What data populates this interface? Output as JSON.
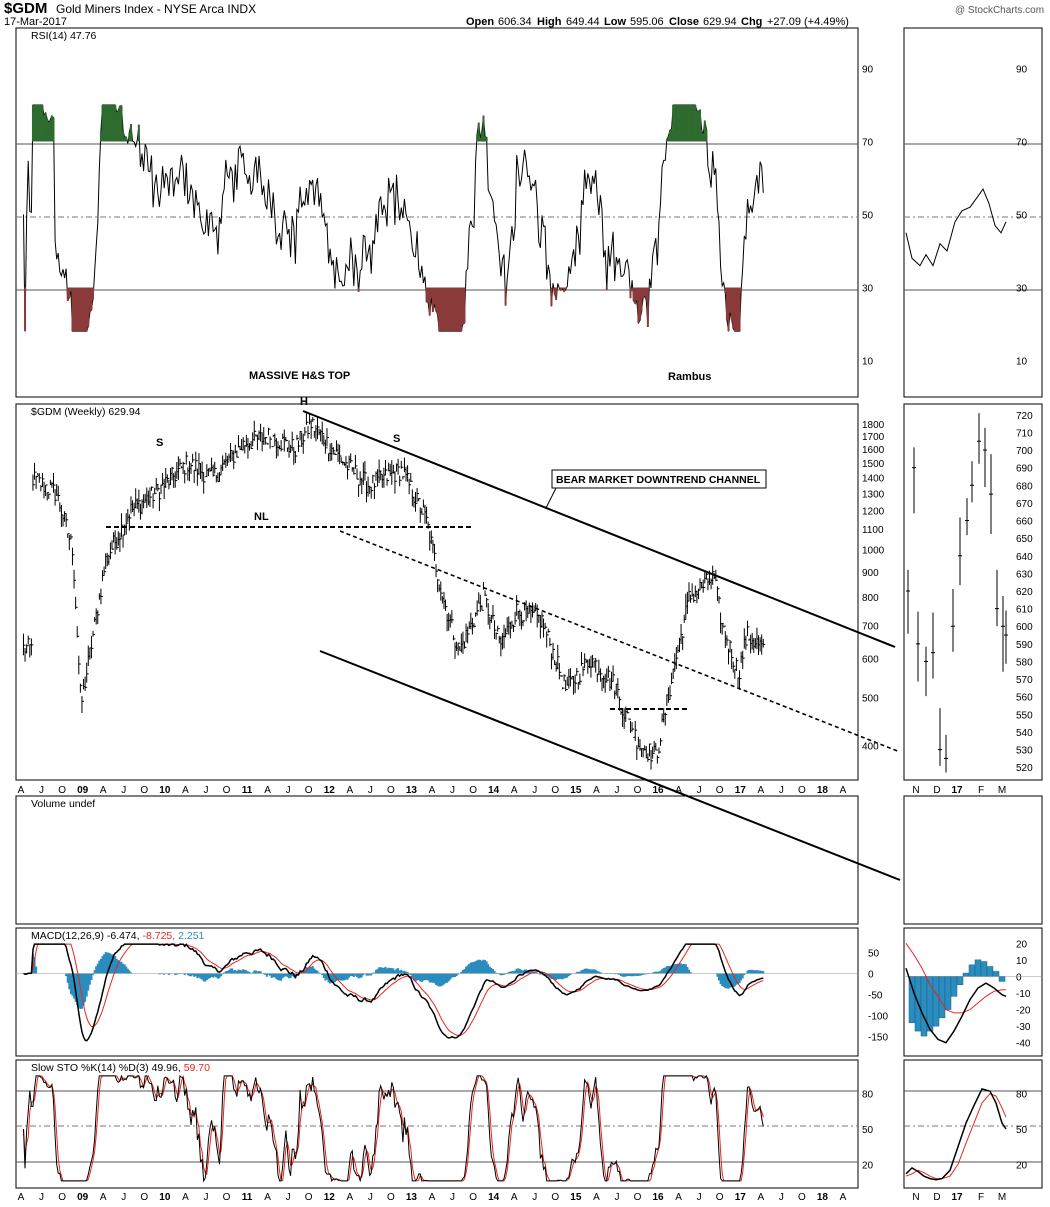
{
  "header": {
    "symbol": "$GDM",
    "name": "Gold Miners Index - NYSE Arca INDX",
    "date": "17-Mar-2017",
    "watermark": "@ StockCharts.com",
    "ohlc": {
      "open_label": "Open",
      "open": "606.34",
      "high_label": "High",
      "high": "649.44",
      "low_label": "Low",
      "low": "595.06",
      "close_label": "Close",
      "close": "629.94",
      "chg_label": "Chg",
      "chg": "+27.09 (+4.49%)"
    }
  },
  "panels": {
    "rsi_label": "RSI(14) 47.76",
    "price_label": "$GDM (Weekly) 629.94",
    "volume_label": "Volume undef",
    "macd_label_a": "MACD(12,26,9) -6.474,",
    "macd_label_b": "-8.725,",
    "macd_label_c": "2.251",
    "sto_label_a": "Slow STO %K(14) %D(3) 49.96,",
    "sto_label_b": "59.70"
  },
  "annotations": {
    "massive": "MASSIVE H&S TOP",
    "rambus": "Rambus",
    "h": "H",
    "s1": "S",
    "s2": "S",
    "nl": "NL",
    "bear": "BEAR MARKET  DOWNTREND CHANNEL"
  },
  "colors": {
    "up": "#2e6b2e",
    "down": "#8b3a3a",
    "signal": "#e8261c",
    "hist": "#2b8cbe",
    "dotted": "#666666"
  },
  "chart_data": {
    "type": "line",
    "title": "$GDM Gold Miners Index - NYSE Arca INDX (Weekly)",
    "x_axis_ticks_main": [
      "A",
      "J",
      "O",
      "09",
      "A",
      "J",
      "O",
      "10",
      "A",
      "J",
      "O",
      "11",
      "A",
      "J",
      "O",
      "12",
      "A",
      "J",
      "O",
      "13",
      "A",
      "J",
      "O",
      "14",
      "A",
      "J",
      "O",
      "15",
      "A",
      "J",
      "O",
      "16",
      "A",
      "J",
      "O",
      "17",
      "A",
      "J",
      "O",
      "18",
      "A"
    ],
    "x_axis_ticks_zoom": [
      "N",
      "D",
      "17",
      "F",
      "M"
    ],
    "rsi": {
      "ticks": [
        90,
        70,
        50,
        30,
        10
      ],
      "ylim": [
        0,
        100
      ],
      "last": 47.76
    },
    "price": {
      "scale": "log",
      "ticks": [
        1800,
        1700,
        1600,
        1500,
        1400,
        1300,
        1200,
        1100,
        1000,
        900,
        800,
        700,
        600,
        500,
        400
      ],
      "ylim": [
        340,
        1850
      ],
      "x": [
        2008.3,
        2008.6,
        2008.8,
        2008.9,
        2009.2,
        2009.5,
        2009.8,
        2010.2,
        2010.5,
        2010.9,
        2011.2,
        2011.5,
        2011.7,
        2012.1,
        2012.4,
        2012.8,
        2013.1,
        2013.3,
        2013.5,
        2013.8,
        2014.0,
        2014.2,
        2014.5,
        2014.8,
        2015.1,
        2015.4,
        2015.5,
        2015.7,
        2015.9,
        2016.1,
        2016.3,
        2016.6,
        2016.7,
        2016.9,
        2017.0,
        2017.2
      ],
      "close": [
        1400,
        1300,
        1000,
        480,
        950,
        1200,
        1300,
        1500,
        1400,
        1650,
        1700,
        1600,
        1800,
        1500,
        1350,
        1450,
        1150,
        800,
        620,
        800,
        640,
        750,
        720,
        520,
        600,
        530,
        470,
        400,
        380,
        560,
        800,
        880,
        700,
        560,
        670,
        630
      ]
    },
    "price_zoom": {
      "ticks": [
        720,
        710,
        700,
        690,
        680,
        670,
        660,
        650,
        640,
        630,
        620,
        610,
        600,
        590,
        580,
        570,
        560,
        550,
        540,
        530,
        520
      ],
      "ylim": [
        515,
        725
      ]
    },
    "macd": {
      "ticks": [
        50,
        0,
        -50,
        -100,
        -150
      ],
      "ylim": [
        -175,
        75
      ],
      "macd": -6.474,
      "signal": -8.725,
      "histogram": 2.251
    },
    "macd_zoom": {
      "ticks": [
        20,
        10,
        0,
        -10,
        -20,
        -30,
        -40
      ]
    },
    "slow_sto": {
      "ticks": [
        80,
        50,
        20
      ],
      "ylim": [
        0,
        100
      ],
      "k": 49.96,
      "d": 59.7
    }
  }
}
